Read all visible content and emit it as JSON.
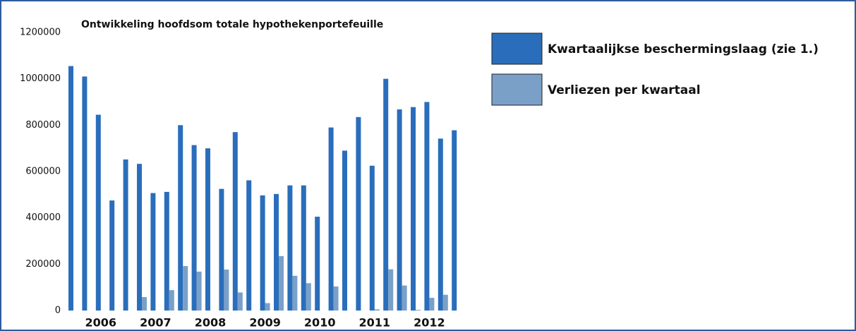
{
  "chart_data": {
    "type": "bar",
    "title": "Ontwikkeling hoofdsom totale hypothekenportefeuille",
    "categories": [
      null,
      null,
      "2006",
      null,
      null,
      null,
      "2007",
      null,
      null,
      null,
      "2008",
      null,
      null,
      null,
      "2009",
      null,
      null,
      null,
      "2010",
      null,
      null,
      null,
      "2011",
      null,
      null,
      null,
      "2012",
      null,
      null
    ],
    "series": [
      {
        "name": "Kwartaalijkse beschermingslaag (zie 1.)",
        "color": "#2a6ebb",
        "values": [
          1055000,
          1010000,
          845000,
          475000,
          652000,
          633000,
          507000,
          512000,
          800000,
          714000,
          700000,
          525000,
          770000,
          562000,
          497000,
          503000,
          540000,
          540000,
          405000,
          790000,
          690000,
          835000,
          625000,
          1000000,
          868000,
          878000,
          900000,
          742000,
          778000
        ]
      },
      {
        "name": "Verliezen per kwartaal",
        "color": "#7aa0c8",
        "values": [
          0,
          0,
          0,
          0,
          0,
          58000,
          0,
          88000,
          192000,
          168000,
          0,
          177000,
          78000,
          0,
          32000,
          235000,
          150000,
          118000,
          0,
          104000,
          0,
          0,
          5000,
          178000,
          108000,
          3000,
          55000,
          68000,
          0
        ]
      }
    ],
    "ylim": [
      0,
      1200000
    ],
    "yticks": [
      0,
      200000,
      400000,
      600000,
      800000,
      1000000,
      1200000
    ],
    "grid": false
  }
}
